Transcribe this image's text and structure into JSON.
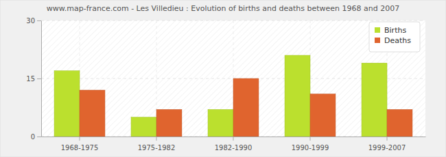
{
  "chart_data": {
    "type": "bar",
    "title": "www.map-france.com - Les Villedieu : Evolution of births and deaths between 1968 and 2007",
    "categories": [
      "1968-1975",
      "1975-1982",
      "1982-1990",
      "1990-1999",
      "1999-2007"
    ],
    "series": [
      {
        "name": "Births",
        "color": "#bbe02e",
        "values": [
          17,
          5,
          7,
          21,
          19
        ]
      },
      {
        "name": "Deaths",
        "color": "#e0642e",
        "values": [
          12,
          7,
          15,
          11,
          7
        ]
      }
    ],
    "ylim": [
      0,
      30
    ],
    "yticks": [
      0,
      15,
      30
    ],
    "grid": true,
    "legend": "top-right"
  }
}
